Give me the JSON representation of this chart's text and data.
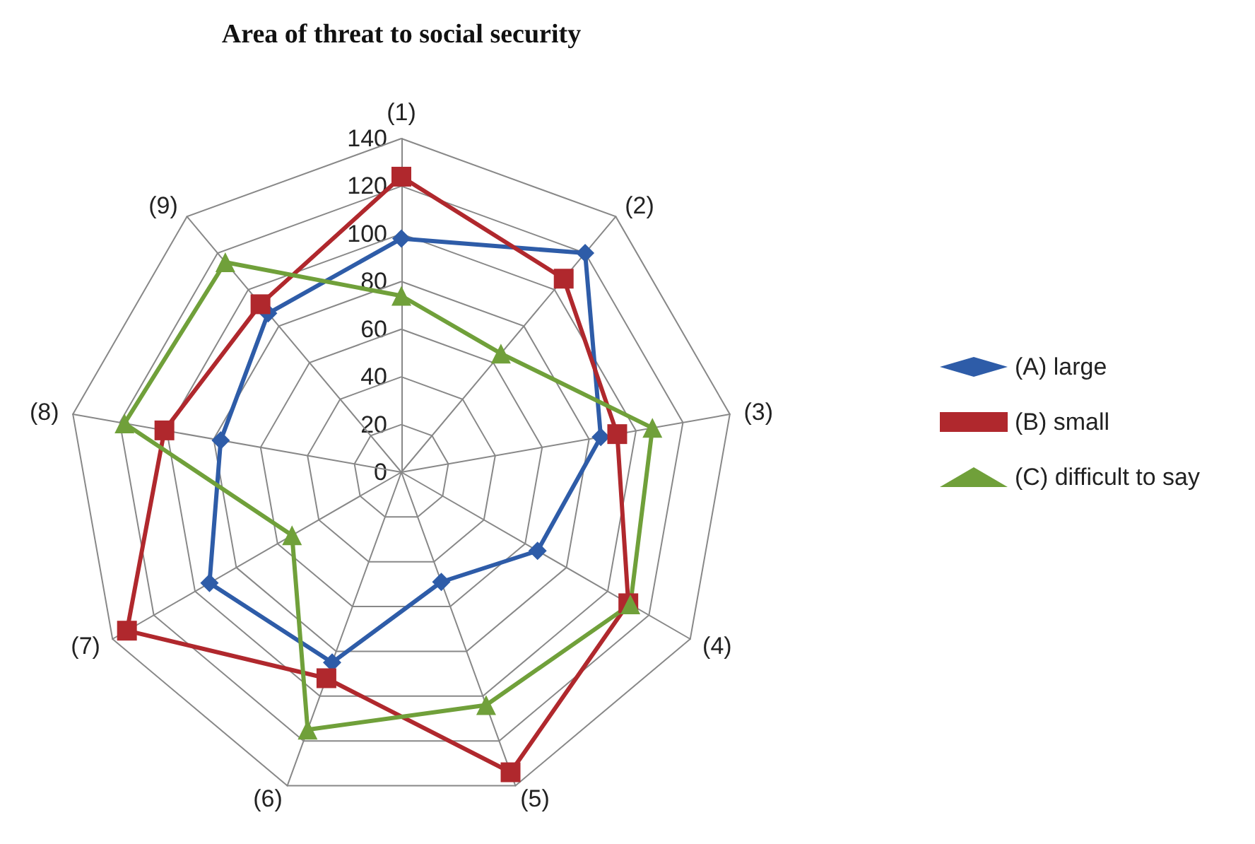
{
  "chart_data": {
    "type": "radar",
    "title": "Area of threat to social security",
    "categories": [
      "(1)",
      "(2)",
      "(3)",
      "(4)",
      "(5)",
      "(6)",
      "(7)",
      "(8)",
      "(9)"
    ],
    "ylim": [
      0,
      140
    ],
    "yticks": [
      0,
      20,
      40,
      60,
      80,
      100,
      120,
      140
    ],
    "legend": "right",
    "grid": true,
    "series": [
      {
        "name": "(A) large",
        "color": "#2e5ca8",
        "marker": "diamond",
        "values": [
          98,
          120,
          85,
          66,
          49,
          85,
          93,
          77,
          87
        ]
      },
      {
        "name": "(B) small",
        "color": "#b0282d",
        "marker": "square",
        "values": [
          124,
          106,
          92,
          110,
          134,
          92,
          133,
          101,
          92
        ]
      },
      {
        "name": "(C) difficult to say",
        "color": "#70a03a",
        "marker": "triangle",
        "values": [
          74,
          65,
          107,
          111,
          104,
          115,
          53,
          118,
          115
        ]
      }
    ]
  }
}
